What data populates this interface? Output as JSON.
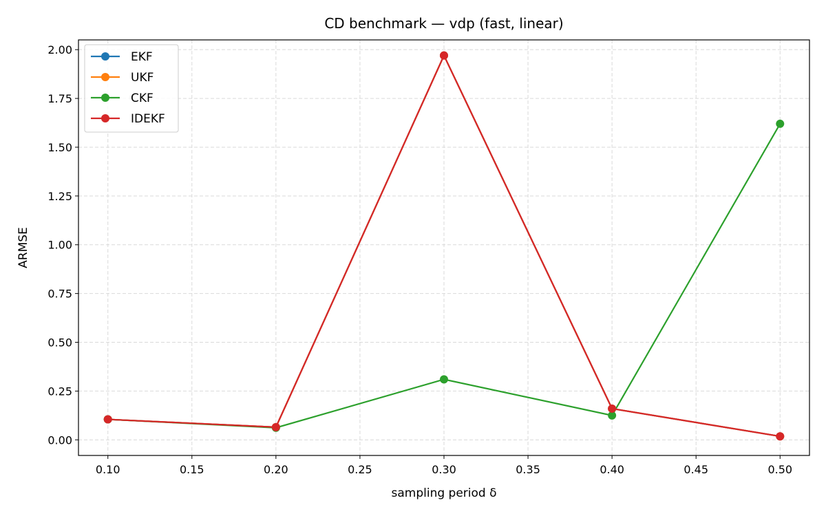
{
  "chart_data": {
    "type": "line",
    "title": "CD benchmark — vdp (fast, linear)",
    "xlabel": "sampling period δ",
    "ylabel": "ARMSE",
    "x": [
      0.1,
      0.2,
      0.3,
      0.4,
      0.5
    ],
    "xlim": [
      0.0825,
      0.5175
    ],
    "ylim": [
      -0.08,
      2.05
    ],
    "xticks": [
      0.1,
      0.15,
      0.2,
      0.25,
      0.3,
      0.35,
      0.4,
      0.45,
      0.5
    ],
    "xtick_labels": [
      "0.10",
      "0.15",
      "0.20",
      "0.25",
      "0.30",
      "0.35",
      "0.40",
      "0.45",
      "0.50"
    ],
    "yticks": [
      0,
      0.25,
      0.5,
      0.75,
      1.0,
      1.25,
      1.5,
      1.75,
      2.0
    ],
    "ytick_labels": [
      "0.00",
      "0.25",
      "0.50",
      "0.75",
      "1.00",
      "1.25",
      "1.50",
      "1.75",
      "2.00"
    ],
    "grid": true,
    "legend_position": "top-left",
    "series": [
      {
        "name": "EKF",
        "color": "#1f77b4",
        "values": [
          0.105,
          0.065,
          1.97,
          0.16,
          0.018
        ]
      },
      {
        "name": "UKF",
        "color": "#ff7f0e",
        "values": [
          0.105,
          0.065,
          1.97,
          0.16,
          0.018
        ]
      },
      {
        "name": "CKF",
        "color": "#2ca02c",
        "values": [
          0.105,
          0.062,
          0.31,
          0.125,
          1.62
        ]
      },
      {
        "name": "IDEKF",
        "color": "#d62728",
        "values": [
          0.105,
          0.065,
          1.97,
          0.16,
          0.018
        ]
      }
    ]
  }
}
